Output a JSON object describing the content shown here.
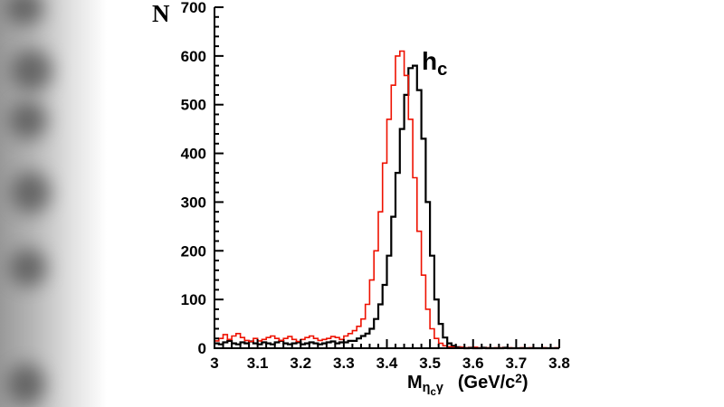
{
  "chart_data": {
    "type": "line",
    "subtype": "step-histogram",
    "title": "",
    "ylabel": "N",
    "xlabel_parts": {
      "main": "M",
      "sub_eta": "η",
      "sub_c": "c",
      "sub_gamma": "γ",
      "units_pre": "(GeV/c",
      "units_sup": "2",
      "units_post": ")"
    },
    "annotation": {
      "main": "h",
      "sub": "c"
    },
    "xlim": [
      3.0,
      3.8
    ],
    "ylim": [
      0,
      700
    ],
    "grid": false,
    "legend": "none",
    "x_start": 3.0,
    "bin_width": 0.01,
    "x_ticks": [
      3.0,
      3.1,
      3.2,
      3.3,
      3.4,
      3.5,
      3.6,
      3.7,
      3.8
    ],
    "x_tick_labels": [
      "3",
      "3.1",
      "3.2",
      "3.3",
      "3.4",
      "3.5",
      "3.6",
      "3.7",
      "3.8"
    ],
    "y_ticks": [
      0,
      100,
      200,
      300,
      400,
      500,
      600,
      700
    ],
    "y_tick_labels": [
      "0",
      "100",
      "200",
      "300",
      "400",
      "500",
      "600",
      "700"
    ],
    "x_minor_step": 0.02,
    "y_minor_step": 20,
    "series": [
      {
        "name": "black-histogram",
        "color": "#000000",
        "line_width": 2.2,
        "values": [
          10,
          8,
          12,
          15,
          10,
          8,
          12,
          10,
          14,
          10,
          8,
          12,
          10,
          8,
          12,
          15,
          10,
          8,
          10,
          12,
          8,
          10,
          12,
          10,
          8,
          10,
          12,
          14,
          10,
          12,
          12,
          15,
          15,
          20,
          25,
          30,
          40,
          60,
          90,
          130,
          190,
          270,
          360,
          450,
          520,
          575,
          580,
          530,
          430,
          300,
          190,
          100,
          50,
          22,
          10,
          5,
          2,
          1,
          0,
          1,
          0,
          0,
          1,
          0,
          0,
          0,
          0,
          1,
          0,
          0,
          0,
          0,
          0,
          0,
          0,
          0,
          0,
          0,
          0,
          0
        ]
      },
      {
        "name": "red-histogram",
        "color": "#ee1100",
        "line_width": 1.6,
        "values": [
          15,
          20,
          28,
          18,
          25,
          30,
          22,
          16,
          14,
          20,
          15,
          18,
          22,
          25,
          20,
          16,
          20,
          24,
          18,
          14,
          18,
          22,
          25,
          20,
          16,
          18,
          20,
          24,
          22,
          18,
          25,
          30,
          36,
          45,
          60,
          90,
          140,
          200,
          280,
          380,
          470,
          540,
          600,
          610,
          560,
          470,
          350,
          240,
          150,
          80,
          40,
          20,
          10,
          5,
          3,
          2,
          1,
          2,
          1,
          1,
          2,
          1,
          0,
          1,
          0,
          1,
          1,
          0,
          1,
          0,
          0,
          1,
          0,
          1,
          0,
          0,
          1,
          0,
          0,
          1
        ]
      }
    ]
  }
}
